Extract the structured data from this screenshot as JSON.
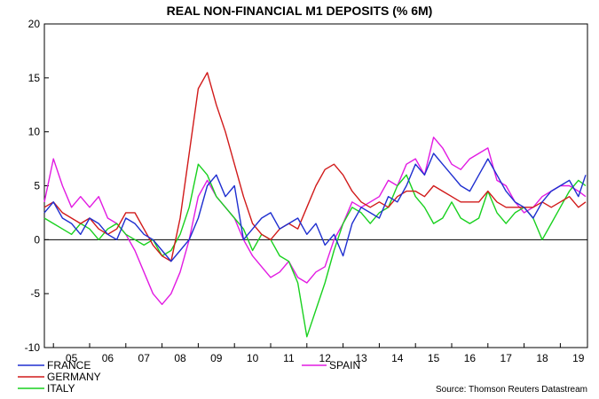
{
  "chart_data": {
    "type": "line",
    "title": "REAL NON-FINANCIAL M1 DEPOSITS (% 6M)",
    "source": "Source: Thomson Reuters Datastream",
    "ylim": [
      -10,
      20
    ],
    "yticks": [
      -10,
      -5,
      0,
      5,
      10,
      15,
      20
    ],
    "ytick_labels": [
      "-10",
      "-5",
      "0",
      "5",
      "10",
      "15",
      "20"
    ],
    "xlim": [
      2004.75,
      2019.75
    ],
    "year_labels": [
      "05",
      "06",
      "07",
      "08",
      "09",
      "10",
      "11",
      "12",
      "13",
      "14",
      "15",
      "16",
      "17",
      "18",
      "19"
    ],
    "zero_line": true,
    "grid": false,
    "legend_placement": "bottom",
    "series": [
      {
        "name": "FRANCE",
        "color": "#1f2fd0",
        "x": [
          2004.75,
          2005.0,
          2005.25,
          2005.5,
          2005.75,
          2006.0,
          2006.25,
          2006.5,
          2006.75,
          2007.0,
          2007.25,
          2007.5,
          2007.75,
          2008.0,
          2008.25,
          2008.5,
          2008.75,
          2009.0,
          2009.25,
          2009.5,
          2009.75,
          2010.0,
          2010.25,
          2010.5,
          2010.75,
          2011.0,
          2011.25,
          2011.5,
          2011.75,
          2012.0,
          2012.25,
          2012.5,
          2012.75,
          2013.0,
          2013.25,
          2013.5,
          2013.75,
          2014.0,
          2014.25,
          2014.5,
          2014.75,
          2015.0,
          2015.25,
          2015.5,
          2015.75,
          2016.0,
          2016.25,
          2016.5,
          2016.75,
          2017.0,
          2017.25,
          2017.5,
          2017.75,
          2018.0,
          2018.25,
          2018.5,
          2018.75,
          2019.0,
          2019.25,
          2019.5,
          2019.7
        ],
        "y": [
          2.5,
          3.5,
          2.0,
          1.5,
          0.5,
          2.0,
          1.5,
          0.5,
          0.0,
          2.0,
          1.5,
          0.5,
          0.0,
          -1.0,
          -2.0,
          -1.0,
          0.0,
          2.0,
          5.0,
          6.0,
          4.0,
          5.0,
          0.0,
          1.0,
          2.0,
          2.5,
          1.0,
          1.5,
          2.0,
          0.5,
          1.5,
          -0.5,
          0.5,
          -1.5,
          1.5,
          3.0,
          2.5,
          2.0,
          4.0,
          3.5,
          5.0,
          7.0,
          6.0,
          8.0,
          7.0,
          6.0,
          5.0,
          4.5,
          6.0,
          7.5,
          6.0,
          4.5,
          3.5,
          3.0,
          2.0,
          3.5,
          4.5,
          5.0,
          5.5,
          4.0,
          6.0
        ]
      },
      {
        "name": "GERMANY",
        "color": "#d11a1a",
        "x": [
          2004.75,
          2005.0,
          2005.25,
          2005.5,
          2005.75,
          2006.0,
          2006.25,
          2006.5,
          2006.75,
          2007.0,
          2007.25,
          2007.5,
          2007.75,
          2008.0,
          2008.25,
          2008.5,
          2008.75,
          2009.0,
          2009.25,
          2009.5,
          2009.75,
          2010.0,
          2010.25,
          2010.5,
          2010.75,
          2011.0,
          2011.25,
          2011.5,
          2011.75,
          2012.0,
          2012.25,
          2012.5,
          2012.75,
          2013.0,
          2013.25,
          2013.5,
          2013.75,
          2014.0,
          2014.25,
          2014.5,
          2014.75,
          2015.0,
          2015.25,
          2015.5,
          2015.75,
          2016.0,
          2016.25,
          2016.5,
          2016.75,
          2017.0,
          2017.25,
          2017.5,
          2017.75,
          2018.0,
          2018.25,
          2018.5,
          2018.75,
          2019.0,
          2019.25,
          2019.5,
          2019.7
        ],
        "y": [
          3.0,
          3.5,
          2.5,
          2.0,
          1.5,
          2.0,
          1.0,
          0.5,
          1.0,
          2.5,
          2.5,
          1.0,
          -0.5,
          -1.5,
          -2.0,
          2.0,
          8.0,
          14.0,
          15.5,
          12.5,
          10.0,
          7.0,
          4.0,
          1.5,
          0.5,
          0.0,
          1.0,
          1.5,
          1.0,
          3.0,
          5.0,
          6.5,
          7.0,
          6.0,
          4.5,
          3.5,
          3.0,
          3.5,
          3.0,
          4.0,
          4.5,
          4.5,
          4.0,
          5.0,
          4.5,
          4.0,
          3.5,
          3.5,
          3.5,
          4.5,
          3.5,
          3.0,
          3.0,
          3.0,
          3.0,
          3.5,
          3.0,
          3.5,
          4.0,
          3.0,
          3.5
        ]
      },
      {
        "name": "ITALY",
        "color": "#19d11f",
        "x": [
          2004.75,
          2005.0,
          2005.25,
          2005.5,
          2005.75,
          2006.0,
          2006.25,
          2006.5,
          2006.75,
          2007.0,
          2007.25,
          2007.5,
          2007.75,
          2008.0,
          2008.25,
          2008.5,
          2008.75,
          2009.0,
          2009.25,
          2009.5,
          2009.75,
          2010.0,
          2010.25,
          2010.5,
          2010.75,
          2011.0,
          2011.25,
          2011.5,
          2011.75,
          2012.0,
          2012.25,
          2012.5,
          2012.75,
          2013.0,
          2013.25,
          2013.5,
          2013.75,
          2014.0,
          2014.25,
          2014.5,
          2014.75,
          2015.0,
          2015.25,
          2015.5,
          2015.75,
          2016.0,
          2016.25,
          2016.5,
          2016.75,
          2017.0,
          2017.25,
          2017.5,
          2017.75,
          2018.0,
          2018.25,
          2018.5,
          2018.75,
          2019.0,
          2019.25,
          2019.5,
          2019.7
        ],
        "y": [
          2.0,
          1.5,
          1.0,
          0.5,
          1.5,
          1.0,
          0.0,
          1.0,
          1.5,
          0.5,
          0.0,
          -0.5,
          0.0,
          -1.5,
          -1.0,
          0.5,
          3.0,
          7.0,
          6.0,
          4.0,
          3.0,
          2.0,
          1.0,
          -1.0,
          0.5,
          0.0,
          -1.5,
          -2.0,
          -4.0,
          -9.0,
          -6.5,
          -4.0,
          -1.0,
          1.5,
          3.0,
          2.5,
          1.5,
          2.5,
          3.0,
          5.0,
          6.0,
          4.0,
          3.0,
          1.5,
          2.0,
          3.5,
          2.0,
          1.5,
          2.0,
          4.5,
          2.5,
          1.5,
          2.5,
          3.0,
          2.0,
          0.0,
          1.5,
          3.0,
          4.5,
          5.5,
          5.0
        ]
      },
      {
        "name": "SPAIN",
        "color": "#e21be2",
        "x": [
          2004.75,
          2005.0,
          2005.25,
          2005.5,
          2005.75,
          2006.0,
          2006.25,
          2006.5,
          2006.75,
          2007.0,
          2007.25,
          2007.5,
          2007.75,
          2008.0,
          2008.25,
          2008.5,
          2008.75,
          2009.0,
          2009.25,
          2009.5,
          2009.75,
          2010.0,
          2010.25,
          2010.5,
          2010.75,
          2011.0,
          2011.25,
          2011.5,
          2011.75,
          2012.0,
          2012.25,
          2012.5,
          2012.75,
          2013.0,
          2013.25,
          2013.5,
          2013.75,
          2014.0,
          2014.25,
          2014.5,
          2014.75,
          2015.0,
          2015.25,
          2015.5,
          2015.75,
          2016.0,
          2016.25,
          2016.5,
          2016.75,
          2017.0,
          2017.25,
          2017.5,
          2017.75,
          2018.0,
          2018.25,
          2018.5,
          2018.75,
          2019.0,
          2019.25,
          2019.5,
          2019.7
        ],
        "y": [
          3.5,
          7.5,
          5.0,
          3.0,
          4.0,
          3.0,
          4.0,
          2.0,
          1.5,
          0.5,
          -1.0,
          -3.0,
          -5.0,
          -6.0,
          -5.0,
          -3.0,
          0.0,
          4.0,
          5.5,
          4.0,
          3.0,
          2.0,
          0.0,
          -1.5,
          -2.5,
          -3.5,
          -3.0,
          -2.0,
          -3.5,
          -4.0,
          -3.0,
          -2.5,
          0.0,
          1.5,
          3.5,
          3.0,
          3.5,
          4.0,
          5.5,
          5.0,
          7.0,
          7.5,
          6.0,
          9.5,
          8.5,
          7.0,
          6.5,
          7.5,
          8.0,
          8.5,
          5.5,
          5.0,
          3.5,
          2.5,
          3.0,
          4.0,
          4.5,
          5.0,
          5.0,
          4.5,
          4.0
        ]
      }
    ]
  }
}
